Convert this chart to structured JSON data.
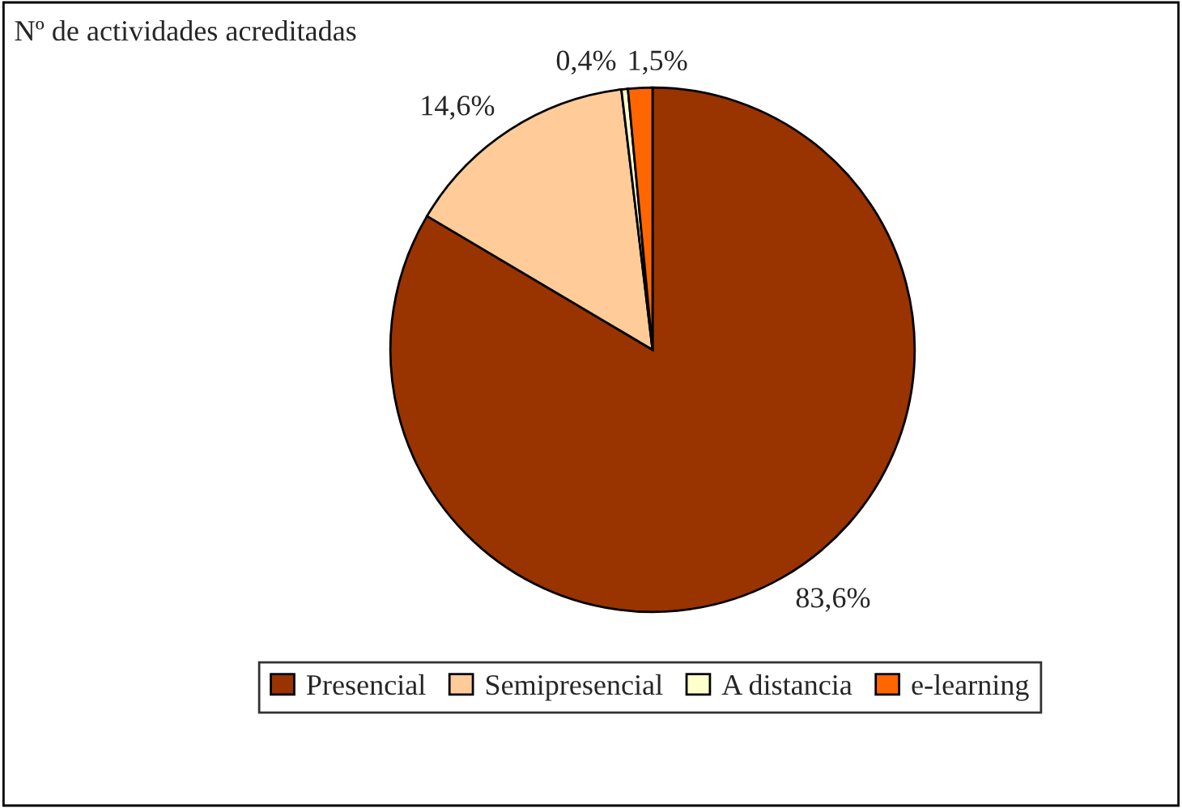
{
  "chart_data": {
    "type": "pie",
    "title": "Nº de actividades acreditadas",
    "categories": [
      "Presencial",
      "Semipresencial",
      "A distancia",
      "e-learning"
    ],
    "values": [
      83.6,
      14.6,
      0.4,
      1.5
    ],
    "colors": [
      "#993300",
      "#ffcc99",
      "#ffffcc",
      "#ff6600"
    ],
    "value_labels": [
      "83,6%",
      "14,6%",
      "0,4%",
      "1,5%"
    ],
    "legend": "bottom"
  }
}
